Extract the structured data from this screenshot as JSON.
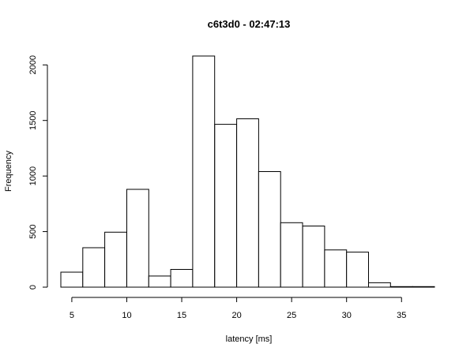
{
  "chart_data": {
    "type": "bar",
    "title": "c6t3d0 - 02:47:13",
    "xlabel": "latency [ms]",
    "ylabel": "Frequency",
    "bin_edges": [
      4,
      6,
      8,
      10,
      12,
      14,
      16,
      18,
      20,
      22,
      24,
      26,
      28,
      30,
      32,
      34,
      36,
      38
    ],
    "values": [
      135,
      355,
      495,
      880,
      100,
      160,
      2080,
      1465,
      1515,
      1040,
      580,
      550,
      335,
      315,
      40,
      5,
      5
    ],
    "xlim": [
      4,
      38
    ],
    "ylim": [
      0,
      2100
    ],
    "xticks": [
      5,
      10,
      15,
      20,
      25,
      30,
      35
    ],
    "yticks": [
      0,
      500,
      1000,
      1500,
      2000
    ],
    "grid": false,
    "legend": "none"
  }
}
